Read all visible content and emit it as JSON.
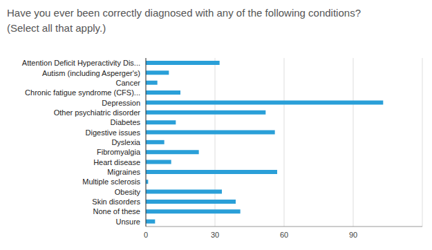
{
  "chart_data": {
    "type": "bar",
    "orientation": "horizontal",
    "title": "Have you ever been correctly diagnosed with any of the following conditions?\n(Select all that apply.)",
    "categories": [
      "Attention Deficit Hyperactivity Dis...",
      "Autism (including Asperger's)",
      "Cancer",
      "Chronic fatigue syndrome (CFS)...",
      "Depression",
      "Other psychiatric disorder",
      "Diabetes",
      "Digestive issues",
      "Dyslexia",
      "Fibromyalgia",
      "Heart disease",
      "Migraines",
      "Multiple sclerosis",
      "Obesity",
      "Skin disorders",
      "None of these",
      "Unsure"
    ],
    "values": [
      32,
      10,
      5,
      15,
      103,
      52,
      13,
      56,
      8,
      23,
      11,
      57,
      1,
      33,
      39,
      41,
      4
    ],
    "color": "#2a9fd8",
    "xlim": [
      0,
      120
    ],
    "xticks": [
      0,
      30,
      60,
      90
    ],
    "grid": true
  }
}
